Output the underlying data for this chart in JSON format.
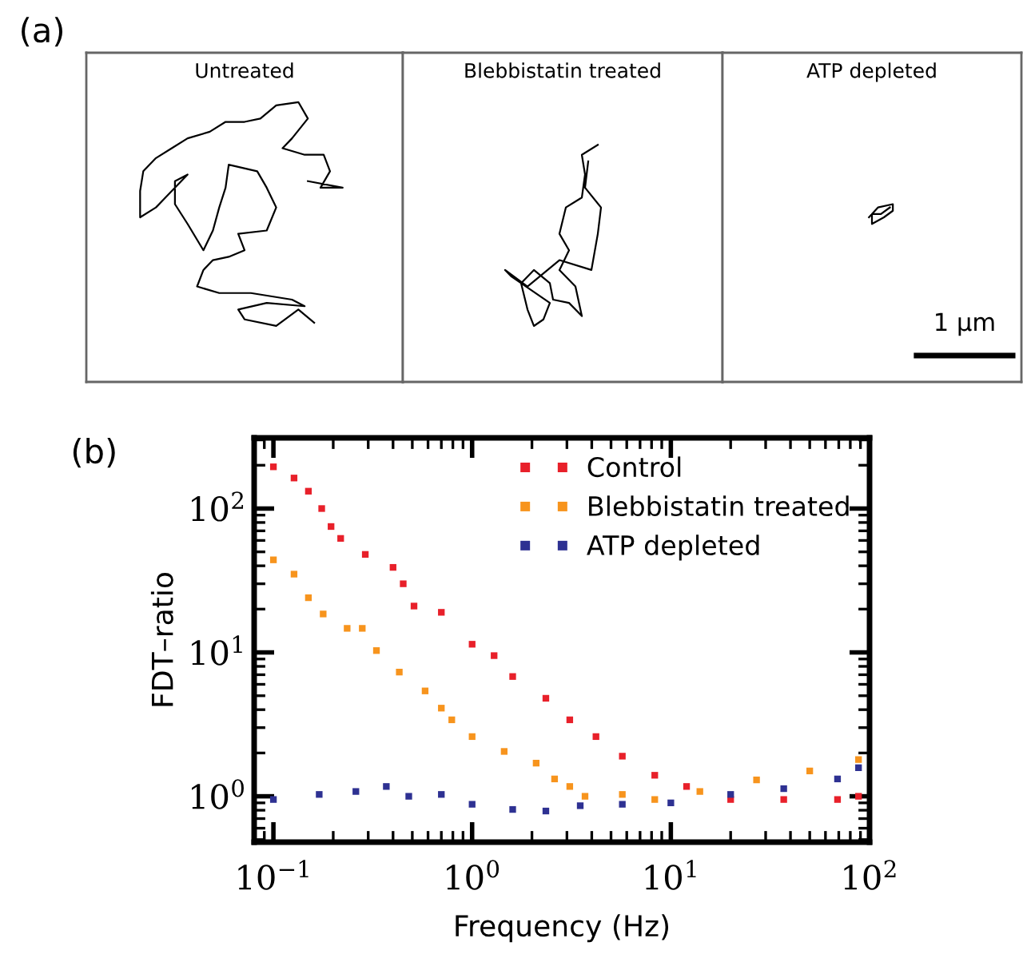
{
  "chart_data": [
    {
      "type": "other",
      "title": "Untreated",
      "annotations": [
        "(a)"
      ]
    },
    {
      "type": "other",
      "title": "Blebbistatin treated"
    },
    {
      "type": "other",
      "title": "ATP depleted",
      "annotations": [
        "1 μm"
      ]
    },
    {
      "type": "scatter",
      "xlabel": "Frequency (Hz)",
      "ylabel": "FDT–ratio",
      "log": "xy",
      "xlim": [
        0.08,
        100
      ],
      "ylim": [
        0.48,
        310
      ],
      "xticks": [
        {
          "value": 0.1,
          "label": "10$^{−1}$"
        },
        {
          "value": 1,
          "label": "10$^{0}$"
        },
        {
          "value": 10,
          "label": "10$^{1}$"
        },
        {
          "value": 100,
          "label": "10$^{2}$"
        }
      ],
      "yticks": [
        {
          "value": 1,
          "label": "10$^{0}$"
        },
        {
          "value": 10,
          "label": "10$^{1}$"
        },
        {
          "value": 100,
          "label": "10$^{2}$"
        }
      ],
      "legend": "top right",
      "marker": "square",
      "annotations": [
        "(b)"
      ],
      "series": [
        {
          "name": "Control",
          "color": "#e8202a",
          "x": [
            0.1,
            0.127,
            0.15,
            0.175,
            0.195,
            0.218,
            0.29,
            0.4,
            0.45,
            0.51,
            0.7,
            1.0,
            1.29,
            1.6,
            2.35,
            3.1,
            4.2,
            5.7,
            8.3,
            12,
            20,
            37,
            69,
            88
          ],
          "values": [
            195,
            163,
            132,
            100,
            75,
            62,
            48,
            39,
            30,
            21,
            19,
            11.4,
            9.5,
            6.8,
            4.8,
            3.4,
            2.6,
            1.9,
            1.4,
            1.17,
            0.95,
            0.95,
            0.95,
            1.0
          ]
        },
        {
          "name": "Blebbistatin treated",
          "color": "#f7941d",
          "x": [
            0.1,
            0.127,
            0.15,
            0.178,
            0.235,
            0.28,
            0.33,
            0.43,
            0.58,
            0.7,
            0.79,
            1.0,
            1.45,
            2.1,
            2.6,
            3.1,
            3.7,
            5.7,
            8.3,
            14,
            27,
            50,
            88
          ],
          "values": [
            44,
            35,
            24,
            18.5,
            14.7,
            14.7,
            10.3,
            7.3,
            5.4,
            4.1,
            3.4,
            2.6,
            2.05,
            1.7,
            1.32,
            1.17,
            1.0,
            1.03,
            0.95,
            1.08,
            1.3,
            1.5,
            1.8
          ]
        },
        {
          "name": "ATP depleted",
          "color": "#2e3192",
          "x": [
            0.1,
            0.17,
            0.26,
            0.37,
            0.48,
            0.7,
            1.0,
            1.6,
            2.35,
            3.5,
            5.7,
            10,
            20,
            37,
            69,
            88
          ],
          "values": [
            0.95,
            1.03,
            1.08,
            1.17,
            1.0,
            1.03,
            0.88,
            0.81,
            0.79,
            0.86,
            0.88,
            0.9,
            1.03,
            1.13,
            1.32,
            1.58
          ]
        }
      ]
    }
  ]
}
